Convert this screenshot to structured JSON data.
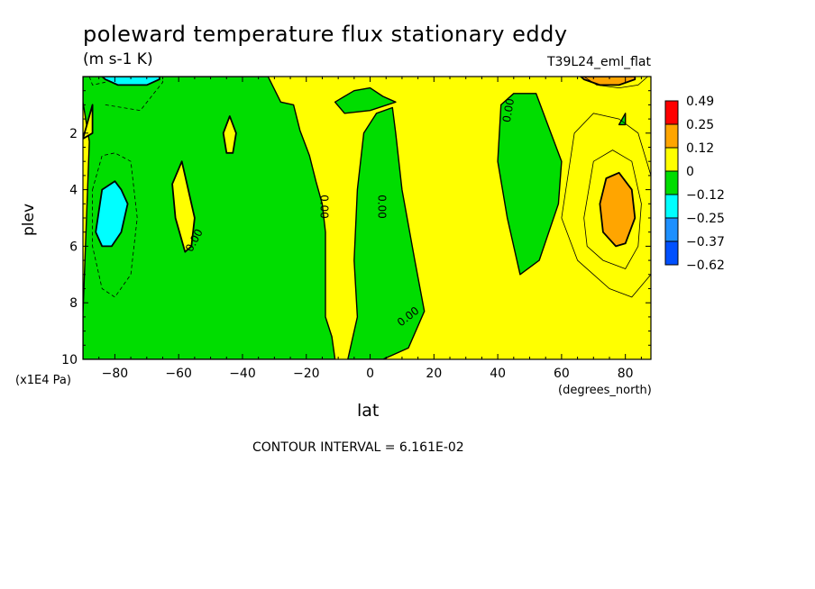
{
  "header": {
    "title": "poleward temperature flux stationary eddy",
    "units": "(m s-1 K)",
    "run_label": "T39L24_eml_flat"
  },
  "footer": {
    "contour_interval": "CONTOUR INTERVAL = 6.161E-02"
  },
  "chart_data": {
    "type": "heatmap",
    "title": "poleward temperature flux stationary eddy",
    "subtitle": "(m s-1 K)",
    "xlabel": "lat",
    "x_unit_label": "(degrees_north)",
    "ylabel": "plev",
    "y_unit_label": "(x1E4 Pa)",
    "xlim": [
      -90,
      88
    ],
    "ylim": [
      10,
      0
    ],
    "x_ticks": [
      -80,
      -60,
      -40,
      -20,
      0,
      20,
      40,
      60,
      80
    ],
    "x_tick_labels": [
      "-80",
      "-60",
      "-40",
      "-20",
      "0",
      "20",
      "40",
      "60",
      "80"
    ],
    "y_ticks": [
      2,
      4,
      6,
      8,
      10
    ],
    "y_tick_labels": [
      "2",
      "4",
      "6",
      "8",
      "10"
    ],
    "contour_interval": 0.06161,
    "contour_label": "0.00",
    "colorbar": {
      "levels": [
        "0.49",
        "0.25",
        "0.12",
        "0",
        "-0.12",
        "-0.25",
        "-0.37",
        "-0.62"
      ],
      "colors": [
        "#ff0000",
        "#ffa500",
        "#ffff00",
        "#00dd00",
        "#00ffff",
        "#1e90ff",
        "#0050ff"
      ]
    },
    "background_color": "#ffff00",
    "regions": [
      {
        "level": "negative",
        "color": "#00dd00",
        "points": [
          [
            -90,
            10
          ],
          [
            -90,
            8.4
          ],
          [
            -88,
            2.3
          ],
          [
            -90,
            0.9
          ],
          [
            -90,
            0
          ],
          [
            -60,
            0
          ],
          [
            -40,
            0
          ],
          [
            -32,
            0
          ],
          [
            -28,
            0.9
          ],
          [
            -24,
            1.0
          ],
          [
            -22,
            1.9
          ],
          [
            -19,
            2.8
          ],
          [
            -17,
            3.7
          ],
          [
            -15,
            4.5
          ],
          [
            -14,
            5.5
          ],
          [
            -14,
            6.5
          ],
          [
            -14,
            7.5
          ],
          [
            -14,
            8.5
          ],
          [
            -12,
            9.2
          ],
          [
            -11,
            10
          ]
        ]
      },
      {
        "level": "positive",
        "color": "#ffff00",
        "points": [
          [
            -90,
            2.2
          ],
          [
            -87,
            1.0
          ],
          [
            -87,
            2.0
          ]
        ]
      },
      {
        "level": "positive",
        "color": "#ffff00",
        "points": [
          [
            -58,
            6.2
          ],
          [
            -61,
            5.0
          ],
          [
            -62,
            3.8
          ],
          [
            -59,
            3.0
          ],
          [
            -57,
            4.0
          ],
          [
            -55,
            5.0
          ],
          [
            -56,
            6.0
          ]
        ]
      },
      {
        "level": "positive",
        "color": "#ffff00",
        "points": [
          [
            -45,
            2.7
          ],
          [
            -46,
            2.0
          ],
          [
            -44,
            1.4
          ],
          [
            -42,
            2.0
          ],
          [
            -43,
            2.7
          ]
        ]
      },
      {
        "level": "negative",
        "color": "#00dd00",
        "points": [
          [
            -7,
            10
          ],
          [
            -4,
            8.5
          ],
          [
            -5,
            6.5
          ],
          [
            -4,
            4.0
          ],
          [
            -2,
            2.0
          ],
          [
            2,
            1.3
          ],
          [
            7,
            1.1
          ],
          [
            8,
            2.0
          ],
          [
            10,
            4.0
          ],
          [
            14,
            6.5
          ],
          [
            17,
            8.3
          ],
          [
            12,
            9.6
          ],
          [
            4,
            10
          ]
        ]
      },
      {
        "level": "negative",
        "color": "#00dd00",
        "points": [
          [
            -11,
            0.9
          ],
          [
            -5,
            0.5
          ],
          [
            0,
            0.4
          ],
          [
            4,
            0.7
          ],
          [
            8,
            0.9
          ],
          [
            0,
            1.2
          ],
          [
            -8,
            1.3
          ]
        ]
      },
      {
        "level": "negative",
        "color": "#00dd00",
        "points": [
          [
            41,
            1.0
          ],
          [
            45,
            0.6
          ],
          [
            52,
            0.6
          ],
          [
            55,
            1.5
          ],
          [
            60,
            3.0
          ],
          [
            59,
            4.5
          ],
          [
            53,
            6.5
          ],
          [
            47,
            7.0
          ],
          [
            43,
            5.0
          ],
          [
            40,
            3.0
          ]
        ]
      },
      {
        "level": "negative",
        "color": "#00dd00",
        "points": [
          [
            78,
            1.7
          ],
          [
            80,
            1.3
          ],
          [
            80,
            1.7
          ]
        ]
      },
      {
        "level": "-0.25..-0.12",
        "color": "#00ffff",
        "points": [
          [
            -86,
            5.5
          ],
          [
            -84,
            4.0
          ],
          [
            -80,
            3.7
          ],
          [
            -78,
            4.0
          ],
          [
            -76,
            4.5
          ],
          [
            -78,
            5.5
          ],
          [
            -81,
            6.0
          ],
          [
            -84,
            6.0
          ]
        ]
      },
      {
        "level": "-0.25..-0.12",
        "color": "#00ffff",
        "points": [
          [
            -83,
            0.1
          ],
          [
            -79,
            0.3
          ],
          [
            -70,
            0.3
          ],
          [
            -66,
            0.1
          ],
          [
            -66,
            0
          ],
          [
            -84,
            0
          ]
        ]
      },
      {
        "level": "0.12..0.25",
        "color": "#ffa500",
        "points": [
          [
            72,
            4.5
          ],
          [
            74,
            3.6
          ],
          [
            78,
            3.4
          ],
          [
            82,
            4.0
          ],
          [
            83,
            5.0
          ],
          [
            80,
            5.9
          ],
          [
            77,
            6.0
          ],
          [
            73,
            5.5
          ]
        ]
      },
      {
        "level": "0.12..0.25",
        "color": "#ffa500",
        "points": [
          [
            67,
            0.1
          ],
          [
            72,
            0.3
          ],
          [
            78,
            0.3
          ],
          [
            83,
            0.1
          ],
          [
            83,
            0
          ],
          [
            66,
            0
          ]
        ]
      }
    ],
    "dashed_contours": [
      [
        [
          -83,
          1.0
        ],
        [
          -72,
          1.2
        ],
        [
          -65,
          0.2
        ],
        [
          -65,
          0.0
        ]
      ],
      [
        [
          -88,
          0.0
        ],
        [
          -87,
          0.3
        ],
        [
          -83,
          0.2
        ]
      ],
      [
        [
          -87,
          4.0
        ],
        [
          -84,
          2.8
        ],
        [
          -80,
          2.7
        ],
        [
          -75,
          3.0
        ],
        [
          -73,
          5.0
        ],
        [
          -75,
          7.0
        ],
        [
          -80,
          7.8
        ],
        [
          -84,
          7.5
        ],
        [
          -87,
          6.0
        ],
        [
          -87,
          4.0
        ]
      ]
    ],
    "thin_contours": [
      [
        [
          67,
          0.0
        ],
        [
          71,
          0.3
        ],
        [
          78,
          0.4
        ],
        [
          84,
          0.3
        ],
        [
          87,
          0.0
        ]
      ],
      [
        [
          67,
          5.0
        ],
        [
          70,
          3.0
        ],
        [
          76,
          2.6
        ],
        [
          82,
          3.0
        ],
        [
          85,
          4.5
        ],
        [
          84,
          6.0
        ],
        [
          80,
          6.8
        ],
        [
          73,
          6.5
        ],
        [
          68,
          6.0
        ],
        [
          67,
          5.0
        ]
      ],
      [
        [
          60,
          5.0
        ],
        [
          64,
          2.0
        ],
        [
          70,
          1.3
        ],
        [
          78,
          1.5
        ],
        [
          84,
          2.0
        ],
        [
          88,
          3.5
        ],
        [
          88,
          7.0
        ],
        [
          82,
          7.8
        ],
        [
          75,
          7.5
        ],
        [
          65,
          6.5
        ],
        [
          60,
          5.0
        ]
      ]
    ],
    "labels": [
      {
        "text": "0.00",
        "lat": -55,
        "plev": 5.8,
        "angle": -62
      },
      {
        "text": "0.00",
        "lat": -14.5,
        "plev": 4.6,
        "angle": 90
      },
      {
        "text": "0.00",
        "lat": 3.5,
        "plev": 4.6,
        "angle": 90
      },
      {
        "text": "0.00",
        "lat": 12,
        "plev": 8.5,
        "angle": -38
      },
      {
        "text": "0.00",
        "lat": 43.5,
        "plev": 1.2,
        "angle": -80
      }
    ]
  }
}
